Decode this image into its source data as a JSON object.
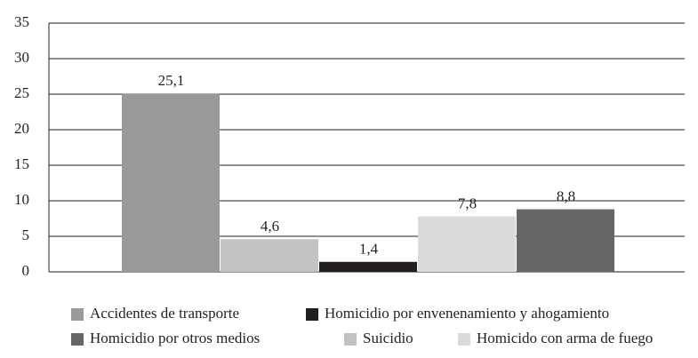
{
  "chart_data": {
    "type": "bar",
    "series": [
      {
        "name": "Accidentes de transporte",
        "color": "#9a9a9c",
        "values": [
          25.1
        ],
        "value_labels": [
          "25,1"
        ]
      },
      {
        "name": "Suicidio",
        "color": "#c2c2c4",
        "values": [
          4.6
        ],
        "value_labels": [
          "4,6"
        ]
      },
      {
        "name": "Homicidio por envenenamiento y ahogamiento",
        "color": "#231f20",
        "values": [
          1.4
        ],
        "value_labels": [
          "1,4"
        ]
      },
      {
        "name": "Homicido con arma de fuego",
        "color": "#dadadb",
        "values": [
          7.8
        ],
        "value_labels": [
          "7,8"
        ]
      },
      {
        "name": "Homicidio por otros medios",
        "color": "#666668",
        "values": [
          8.8
        ],
        "value_labels": [
          "8,8"
        ]
      }
    ],
    "ylim": [
      0,
      35
    ],
    "yticks": [
      0,
      5,
      10,
      15,
      20,
      25,
      30,
      35
    ],
    "grid": true
  }
}
